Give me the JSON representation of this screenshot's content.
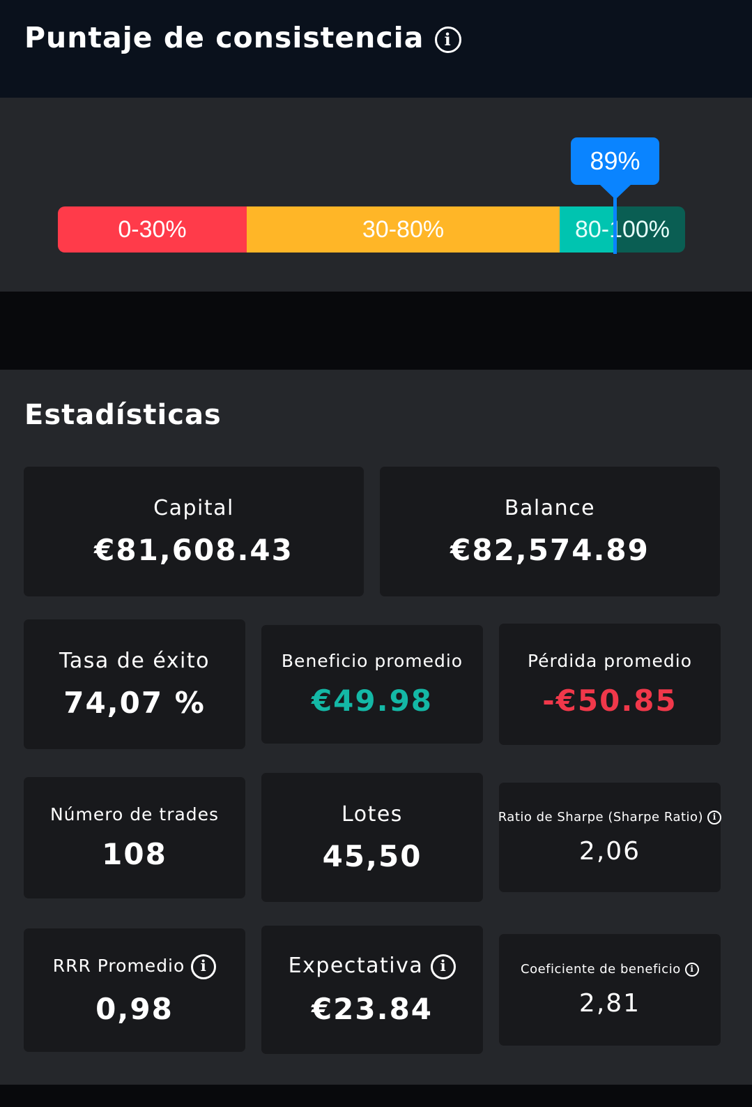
{
  "header": {
    "title": "Puntaje de consistencia"
  },
  "gauge": {
    "value_percent": 89,
    "label": "89%",
    "segments": [
      {
        "label": "0-30%",
        "color": "#ff3b4a"
      },
      {
        "label": "30-80%",
        "color": "#ffb627"
      },
      {
        "label": "80-100%",
        "color": "#00c4b0"
      }
    ],
    "marker_color": "#0a84ff"
  },
  "stats": {
    "title": "Estadísticas",
    "cards": [
      {
        "label": "Capital",
        "value": "€81,608.43"
      },
      {
        "label": "Balance",
        "value": "€82,574.89"
      },
      {
        "label": "Tasa de éxito",
        "value": "74,07 %"
      },
      {
        "label": "Beneficio promedio",
        "value": "€49.98",
        "color": "#14b8a6"
      },
      {
        "label": "Pérdida promedio",
        "value": "-€50.85",
        "color": "#f0384a"
      },
      {
        "label": "Número de trades",
        "value": "108"
      },
      {
        "label": "Lotes",
        "value": "45,50"
      },
      {
        "label": "Ratio de Sharpe (Sharpe Ratio)",
        "value": "2,06",
        "info": true
      },
      {
        "label": "RRR Promedio",
        "value": "0,98",
        "info": true
      },
      {
        "label": "Expectativa",
        "value": "€23.84",
        "info": true
      },
      {
        "label": "Coeficiente de beneficio",
        "value": "2,81",
        "info": true
      }
    ]
  }
}
